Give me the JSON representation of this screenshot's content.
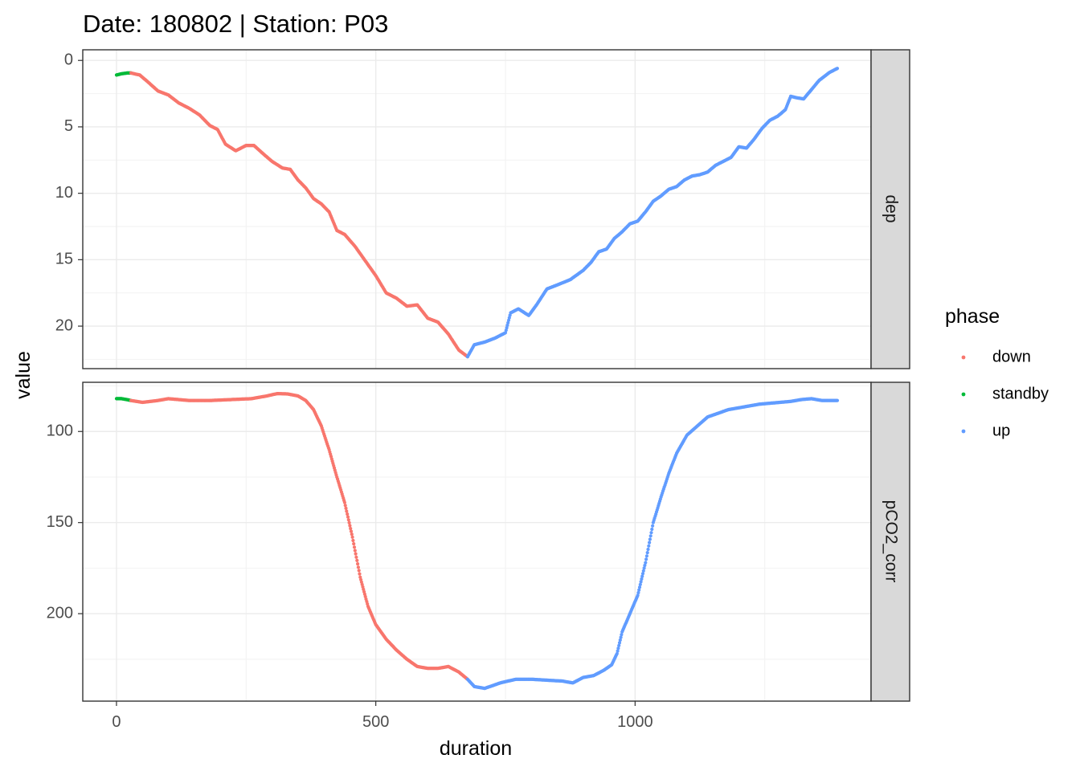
{
  "chart_data": {
    "type": "scatter",
    "title": "Date: 180802 | Station: P03",
    "xlabel": "duration",
    "ylabel": "value",
    "x_ticks": [
      0,
      500,
      1000
    ],
    "xlim": [
      -65,
      1455
    ],
    "grid": true,
    "legend": {
      "title": "phase",
      "position": "right",
      "entries": [
        {
          "name": "down",
          "color": "#F8766D"
        },
        {
          "name": "standby",
          "color": "#00BA38"
        },
        {
          "name": "up",
          "color": "#619CFF"
        }
      ]
    },
    "facets": [
      {
        "strip": "dep",
        "y_reversed": true,
        "ylim": [
          -0.8,
          23.2
        ],
        "y_ticks": [
          0,
          5,
          10,
          15,
          20
        ],
        "series": [
          {
            "name": "standby",
            "x": [
              0,
              10,
              20,
              28
            ],
            "y": [
              1.1,
              1.0,
              0.95,
              0.95
            ]
          },
          {
            "name": "down",
            "x": [
              28,
              45,
              60,
              80,
              100,
              120,
              140,
              160,
              180,
              195,
              210,
              230,
              250,
              265,
              285,
              300,
              320,
              335,
              350,
              365,
              380,
              395,
              410,
              425,
              440,
              460,
              480,
              500,
              520,
              540,
              560,
              580,
              600,
              620,
              640,
              660,
              677
            ],
            "y": [
              0.95,
              1.1,
              1.6,
              2.3,
              2.6,
              3.2,
              3.6,
              4.1,
              4.9,
              5.2,
              6.3,
              6.8,
              6.4,
              6.4,
              7.1,
              7.6,
              8.1,
              8.2,
              9.0,
              9.6,
              10.4,
              10.8,
              11.4,
              12.8,
              13.1,
              14.0,
              15.1,
              16.2,
              17.5,
              17.9,
              18.5,
              18.4,
              19.4,
              19.7,
              20.6,
              21.8,
              22.3
            ]
          },
          {
            "name": "up",
            "x": [
              677,
              690,
              710,
              730,
              750,
              760,
              775,
              795,
              810,
              830,
              850,
              875,
              900,
              915,
              930,
              945,
              960,
              975,
              990,
              1005,
              1020,
              1035,
              1050,
              1065,
              1080,
              1095,
              1110,
              1125,
              1140,
              1155,
              1170,
              1185,
              1200,
              1215,
              1230,
              1245,
              1260,
              1275,
              1290,
              1300,
              1310,
              1325,
              1340,
              1355,
              1375,
              1390
            ],
            "y": [
              22.3,
              21.4,
              21.2,
              20.9,
              20.5,
              19.0,
              18.7,
              19.2,
              18.4,
              17.2,
              16.9,
              16.5,
              15.8,
              15.2,
              14.4,
              14.2,
              13.4,
              12.9,
              12.3,
              12.1,
              11.4,
              10.6,
              10.2,
              9.7,
              9.5,
              9.0,
              8.7,
              8.6,
              8.4,
              7.9,
              7.6,
              7.3,
              6.5,
              6.6,
              5.9,
              5.1,
              4.5,
              4.2,
              3.7,
              2.7,
              2.8,
              2.9,
              2.2,
              1.5,
              0.9,
              0.6
            ]
          }
        ]
      },
      {
        "strip": "pCO2_corr",
        "y_reversed": true,
        "ylim": [
          73,
          248
        ],
        "y_ticks": [
          100,
          150,
          200
        ],
        "series": [
          {
            "name": "standby",
            "x": [
              0,
              10,
              20,
              28
            ],
            "y": [
              82,
              82,
              82.5,
              83
            ]
          },
          {
            "name": "down",
            "x": [
              28,
              50,
              80,
              100,
              140,
              180,
              220,
              260,
              290,
              310,
              330,
              350,
              365,
              380,
              395,
              410,
              425,
              440,
              455,
              470,
              485,
              500,
              520,
              540,
              560,
              580,
              600,
              620,
              640,
              660,
              677
            ],
            "y": [
              83,
              84,
              83,
              82,
              83,
              83,
              82.5,
              82,
              80.5,
              79.2,
              79.4,
              80.5,
              83,
              88,
              97,
              110,
              125,
              139,
              158,
              180,
              196,
              206,
              214,
              220,
              225,
              229,
              230,
              230,
              229,
              232,
              236
            ]
          },
          {
            "name": "up",
            "x": [
              677,
              690,
              710,
              740,
              770,
              800,
              830,
              860,
              880,
              900,
              920,
              940,
              955,
              965,
              975,
              990,
              1005,
              1020,
              1035,
              1050,
              1065,
              1080,
              1100,
              1120,
              1140,
              1160,
              1180,
              1200,
              1220,
              1240,
              1260,
              1280,
              1300,
              1320,
              1340,
              1360,
              1375,
              1390
            ],
            "y": [
              236,
              240,
              241,
              238,
              236,
              236,
              236.5,
              237,
              238,
              235,
              234,
              231,
              228,
              222,
              210,
              200,
              190,
              172,
              150,
              136,
              123,
              112,
              102,
              97,
              92,
              90,
              88,
              87,
              86,
              85,
              84.5,
              84,
              83.5,
              82.5,
              82,
              83,
              83,
              83
            ]
          }
        ]
      }
    ]
  }
}
